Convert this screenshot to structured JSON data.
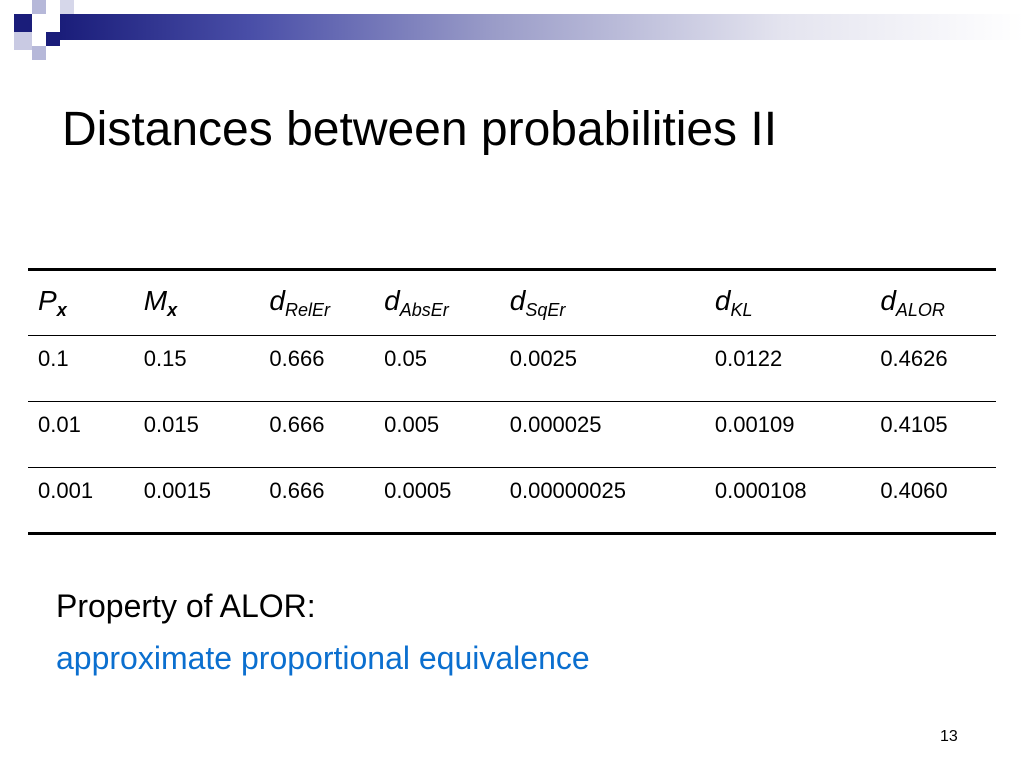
{
  "slide": {
    "title": "Distances between probabilities II",
    "page_number": "13",
    "accent_colors": {
      "decoration_dark": "#1a1d7a",
      "decoration_light": "#b6b8d9",
      "highlight_text": "#0b6fcf"
    }
  },
  "table": {
    "headers": [
      {
        "main": "P",
        "sub": "x"
      },
      {
        "main": "M",
        "sub": "x"
      },
      {
        "main": "d",
        "sub": "RelEr"
      },
      {
        "main": "d",
        "sub": "AbsEr"
      },
      {
        "main": "d",
        "sub": "SqEr"
      },
      {
        "main": "d",
        "sub": "KL"
      },
      {
        "main": "d",
        "sub": "ALOR"
      }
    ],
    "rows": [
      [
        "0.1",
        "0.15",
        "0.666",
        "0.05",
        "0.0025",
        "0.0122",
        "0.4626"
      ],
      [
        "0.01",
        "0.015",
        "0.666",
        "0.005",
        "0.000025",
        "0.00109",
        "0.4105"
      ],
      [
        "0.001",
        "0.0015",
        "0.666",
        "0.0005",
        "0.00000025",
        "0.000108",
        "0.4060"
      ]
    ]
  },
  "property": {
    "label": "Property of ALOR:",
    "value": "approximate proportional equivalence"
  }
}
